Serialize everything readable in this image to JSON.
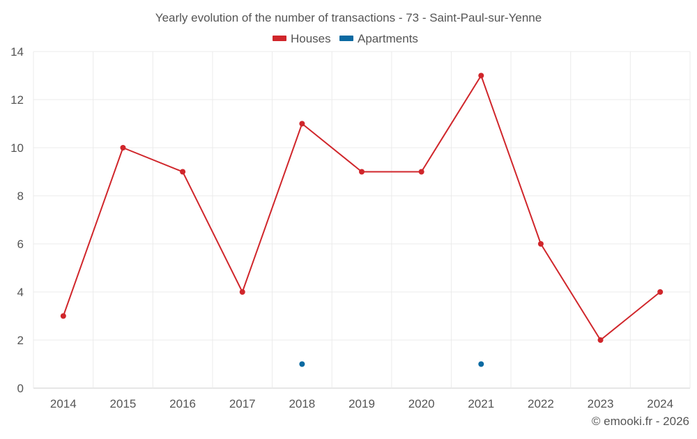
{
  "colors": {
    "houses": "#d0262b",
    "apartments": "#0b6aa2",
    "grid": "#ebebeb",
    "text": "#555555",
    "background": "#ffffff"
  },
  "chart_data": {
    "type": "line",
    "title": "Yearly evolution of the number of transactions - 73 - Saint-Paul-sur-Yenne",
    "x": [
      "2014",
      "2015",
      "2016",
      "2017",
      "2018",
      "2019",
      "2020",
      "2021",
      "2022",
      "2023",
      "2024"
    ],
    "ylim": [
      0,
      14
    ],
    "yticks": [
      0,
      2,
      4,
      6,
      8,
      10,
      12,
      14
    ],
    "grid": true,
    "legend_position": "top-center",
    "series": [
      {
        "name": "Houses",
        "color": "#d0262b",
        "values": [
          3,
          10,
          9,
          4,
          11,
          9,
          9,
          13,
          6,
          2,
          4
        ]
      },
      {
        "name": "Apartments",
        "color": "#0b6aa2",
        "values": [
          null,
          null,
          null,
          null,
          1,
          null,
          null,
          1,
          null,
          null,
          null
        ]
      }
    ]
  },
  "footer": {
    "credit": "© emooki.fr - 2026"
  }
}
